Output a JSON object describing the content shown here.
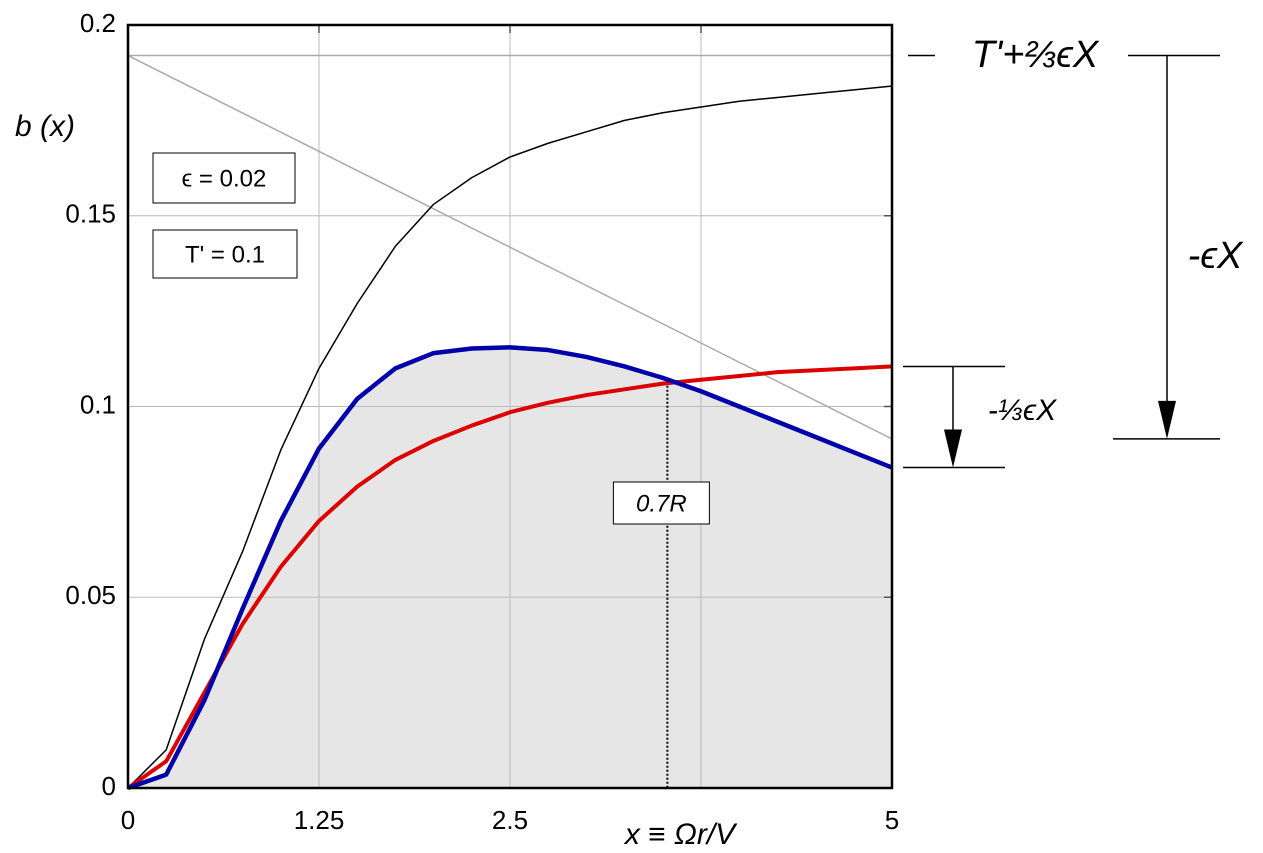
{
  "chart_data": {
    "type": "line",
    "y_label": "b (x)",
    "x_label": "x ≡ Ωr/V",
    "x": [
      0,
      0.25,
      0.5,
      0.75,
      1,
      1.25,
      1.5,
      1.75,
      2,
      2.25,
      2.5,
      2.75,
      3,
      3.25,
      3.5,
      3.75,
      4,
      4.25,
      4.5,
      4.75,
      5
    ],
    "series": [
      {
        "color": "#000000",
        "width": 1.5,
        "values": [
          0,
          0.01,
          0.039,
          0.062,
          0.0886,
          0.11,
          0.127,
          0.142,
          0.153,
          0.16,
          0.1654,
          0.169,
          0.172,
          0.175,
          0.177,
          0.1785,
          0.18,
          0.181,
          0.182,
          0.183,
          0.184
        ]
      },
      {
        "color": "#dd0000",
        "width": 4,
        "values": [
          0,
          0.007,
          0.025,
          0.043,
          0.058,
          0.07,
          0.079,
          0.086,
          0.091,
          0.095,
          0.0985,
          0.101,
          0.103,
          0.1045,
          0.106,
          0.107,
          0.108,
          0.109,
          0.1095,
          0.11,
          0.1105
        ]
      },
      {
        "color": "#0000aa",
        "width": 4.5,
        "shade": "#e6e6e6",
        "values": [
          0,
          0.0035,
          0.023,
          0.047,
          0.07,
          0.089,
          0.102,
          0.11,
          0.114,
          0.1152,
          0.1155,
          0.1148,
          0.113,
          0.1105,
          0.1075,
          0.104,
          0.1,
          0.096,
          0.092,
          0.088,
          0.084
        ]
      }
    ],
    "reference_lines": [
      {
        "x": [
          0,
          5
        ],
        "values": [
          0.192,
          0.192
        ]
      },
      {
        "x": [
          0,
          5
        ],
        "values": [
          0.192,
          0.0915
        ]
      }
    ],
    "xlim": [
      0,
      5
    ],
    "ylim": [
      0,
      0.2
    ],
    "xticks": [
      0,
      1.25,
      2.5,
      5
    ],
    "x_grid": [
      1.25,
      2.5,
      3.75
    ],
    "yticks": [
      0,
      0.05,
      0.1,
      0.15,
      0.2
    ],
    "marker": {
      "x": 3.53,
      "y": 0.1065,
      "label": "0.7R"
    },
    "param_boxes": [
      "ϵ = 0.02",
      "T' = 0.1"
    ],
    "bracket_top": {
      "label": "T'+⅔ϵX",
      "from": 0.192,
      "to": 0.0915,
      "arrow_label": "-ϵX"
    },
    "bracket_bottom": {
      "from": 0.1105,
      "to": 0.084,
      "arrow_label": "-⅓ϵX"
    }
  }
}
